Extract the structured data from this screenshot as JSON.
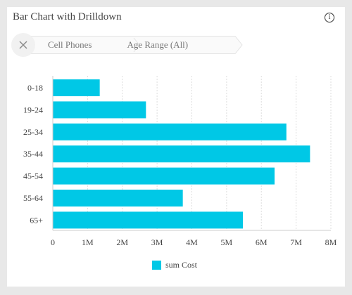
{
  "card": {
    "title": "Bar Chart with Drilldown",
    "info_glyph": "i"
  },
  "breadcrumb": {
    "items": [
      "Cell Phones",
      "Age Range (All)"
    ]
  },
  "chart_data": {
    "type": "bar",
    "orientation": "horizontal",
    "categories": [
      "0-18",
      "19-24",
      "25-34",
      "35-44",
      "45-54",
      "55-64",
      "65+"
    ],
    "series": [
      {
        "name": "sum Cost",
        "color": "#00c8e6",
        "values": [
          1350000,
          2680000,
          6720000,
          7400000,
          6380000,
          3740000,
          5470000
        ]
      }
    ],
    "x_ticks": [
      0,
      1000000,
      2000000,
      3000000,
      4000000,
      5000000,
      6000000,
      7000000,
      8000000
    ],
    "x_tick_labels": [
      "0",
      "1M",
      "2M",
      "3M",
      "4M",
      "5M",
      "6M",
      "7M",
      "8M"
    ],
    "xlim": [
      0,
      8000000
    ],
    "grid": "vertical-dashed",
    "legend_position": "bottom-center"
  }
}
